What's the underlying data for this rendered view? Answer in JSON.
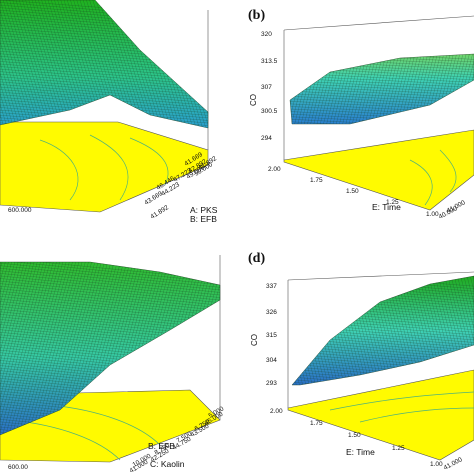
{
  "colors": {
    "floor_fill": "#fffb00",
    "floor_contour": "#4fb37a",
    "mesh_line": "#1b3d1f",
    "surface_high": "#1fb11f",
    "surface_mid": "#3fd2b4",
    "surface_low": "#2a6fc8",
    "frame": "#555555"
  },
  "chart_data": [
    {
      "panel": "a",
      "type": "surface",
      "letter": "",
      "zlabel": "",
      "z_ticks": [],
      "x_label_lines": [
        "A: PKS",
        "B: EFB"
      ],
      "y_label": "",
      "x_ticks": [
        "41.892",
        "43.669",
        "44.223",
        "46.446",
        "47.223",
        "49.000",
        "42.892",
        "41.669",
        "41.892",
        "50.000"
      ],
      "y_ticks": [
        "600.000"
      ]
    },
    {
      "panel": "b",
      "type": "surface",
      "letter": "(b)",
      "zlabel": "CO",
      "z_ticks": [
        "320",
        "313.5",
        "307",
        "300.5",
        "294"
      ],
      "x_label_lines": [
        "E: Time"
      ],
      "y_label": "",
      "x_ticks": [
        "2.00",
        "1.75",
        "1.50",
        "1.25",
        "1.00"
      ],
      "y_ticks": [
        "40.000",
        "41.000"
      ]
    },
    {
      "panel": "c",
      "type": "surface",
      "letter": "",
      "zlabel": "",
      "z_ticks": [],
      "x_label_lines": [
        "B: EFB",
        "C: Kaolin"
      ],
      "y_label": "",
      "x_ticks": [
        "45.000",
        "5.000",
        "43.500",
        "6.250",
        "44.750",
        "7.500",
        "42.250",
        "8.750",
        "41.000",
        "10.000"
      ],
      "y_ticks": [
        "600.00"
      ]
    },
    {
      "panel": "d",
      "type": "surface",
      "letter": "(d)",
      "zlabel": "CO",
      "z_ticks": [
        "337",
        "326",
        "315",
        "304",
        "293"
      ],
      "x_label_lines": [
        "E: Time"
      ],
      "y_label": "",
      "x_ticks": [
        "2.00",
        "1.75",
        "1.50",
        "1.25",
        "1.00"
      ],
      "y_ticks": [
        "41.000"
      ]
    }
  ]
}
